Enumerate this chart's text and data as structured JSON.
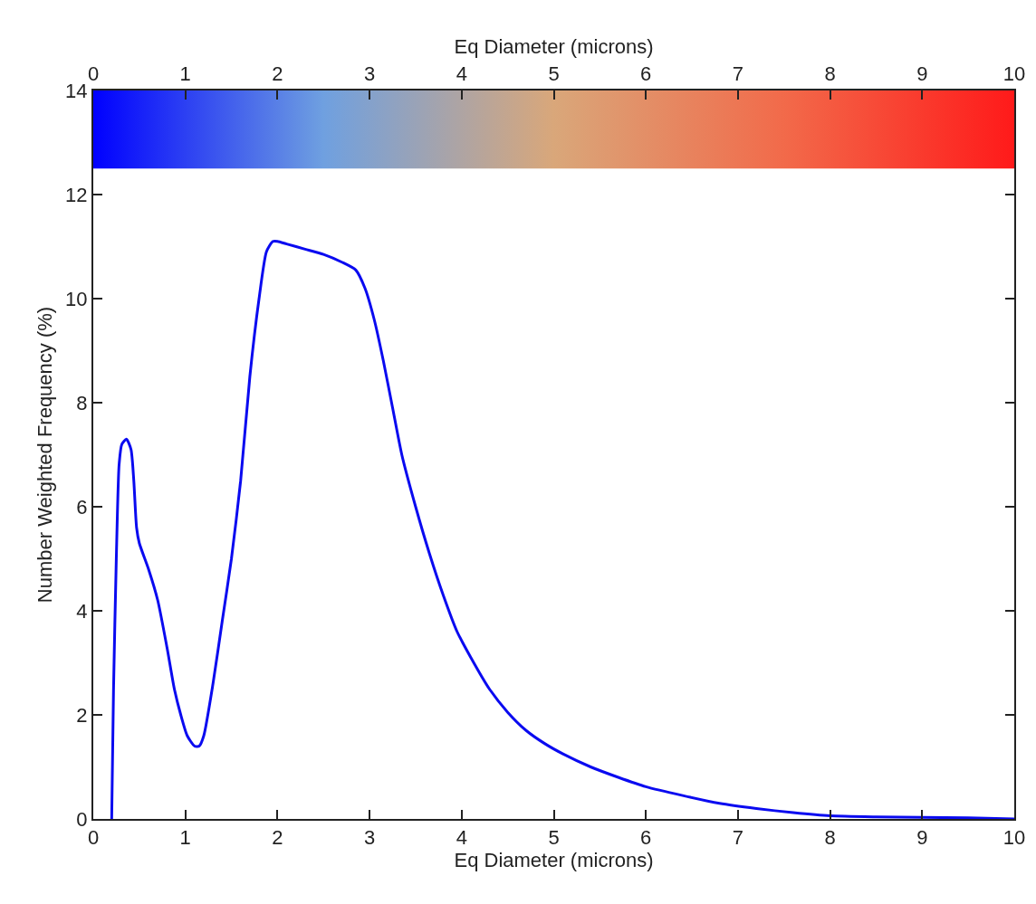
{
  "chart_data": {
    "type": "line",
    "xlabel": "Eq Diameter (microns)",
    "x2label": "Eq Diameter (microns)",
    "ylabel": "Number Weighted Frequency (%)",
    "xlim": [
      0,
      10
    ],
    "xticks": [
      0,
      1,
      2,
      3,
      4,
      5,
      6,
      7,
      8,
      9,
      10
    ],
    "x2lim": [
      0,
      10
    ],
    "x2ticks": [
      0,
      1,
      2,
      3,
      4,
      5,
      6,
      7,
      8,
      9,
      10
    ],
    "ylim": [
      0,
      14
    ],
    "yticks": [
      0,
      2,
      4,
      6,
      8,
      10,
      12,
      14
    ],
    "marker": "none",
    "line_style": "solid",
    "bands": [
      {
        "axis": "y",
        "from": 12.5,
        "to": 14,
        "color": [
          "#0000ff",
          "#6fa0e0",
          "#d9a77a",
          "#f26a4a",
          "#ff1a1a"
        ]
      }
    ],
    "series": [
      {
        "color": "#0a0af0",
        "x": [
          0.2,
          0.22,
          0.25,
          0.28,
          0.31,
          0.36,
          0.41,
          0.44,
          0.47,
          0.5,
          0.6,
          0.7,
          0.8,
          0.88,
          0.95,
          1.02,
          1.1,
          1.15,
          1.2,
          1.3,
          1.4,
          1.5,
          1.6,
          1.7,
          1.8,
          1.88,
          1.95,
          2.0,
          2.1,
          2.3,
          2.5,
          2.7,
          2.85,
          2.95,
          3.05,
          3.15,
          3.25,
          3.35,
          3.5,
          3.65,
          3.8,
          3.95,
          4.1,
          4.3,
          4.5,
          4.7,
          4.9,
          5.1,
          5.4,
          5.7,
          6.0,
          6.4,
          6.8,
          7.2,
          7.6,
          8.0,
          8.5,
          9.0,
          9.5,
          10.0
        ],
        "values": [
          0,
          2.5,
          5.0,
          6.8,
          7.2,
          7.3,
          7.1,
          6.5,
          5.6,
          5.3,
          4.8,
          4.2,
          3.3,
          2.5,
          2.0,
          1.6,
          1.4,
          1.4,
          1.6,
          2.6,
          3.8,
          5.0,
          6.5,
          8.5,
          10.0,
          10.9,
          11.1,
          11.1,
          11.05,
          10.95,
          10.85,
          10.7,
          10.55,
          10.2,
          9.6,
          8.8,
          7.9,
          7.0,
          6.0,
          5.1,
          4.3,
          3.6,
          3.1,
          2.5,
          2.05,
          1.7,
          1.45,
          1.25,
          1.0,
          0.8,
          0.62,
          0.45,
          0.3,
          0.2,
          0.12,
          0.06,
          0.04,
          0.03,
          0.02,
          0.0
        ]
      }
    ]
  }
}
